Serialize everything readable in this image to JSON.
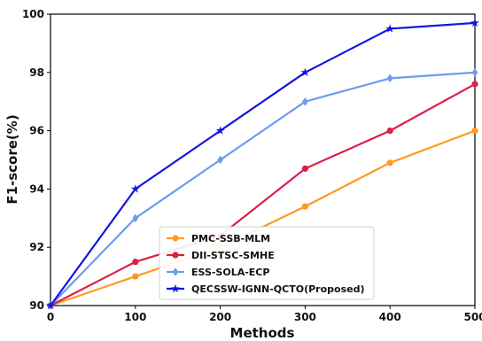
{
  "chart_data": {
    "type": "line",
    "xlabel": "Methods",
    "ylabel": "F1-score(%)",
    "x": [
      0,
      100,
      200,
      300,
      400,
      500
    ],
    "xlim": [
      0,
      500
    ],
    "ylim": [
      90,
      100
    ],
    "x_ticks": [
      "0",
      "100",
      "200",
      "300",
      "400",
      "500"
    ],
    "y_ticks": [
      "90",
      "92",
      "94",
      "96",
      "98",
      "100"
    ],
    "grid": false,
    "legend_position": "lower-center",
    "series": [
      {
        "name": "PMC-SSB-MLM",
        "color": "#ff9a1f",
        "marker": "circle",
        "values": [
          90.0,
          91.0,
          92.0,
          93.4,
          94.9,
          96.0
        ]
      },
      {
        "name": "DII-STSC-SMHE",
        "color": "#dc1f47",
        "marker": "circle",
        "values": [
          90.0,
          91.5,
          92.4,
          94.7,
          96.0,
          97.6
        ]
      },
      {
        "name": "ESS-SOLA-ECP",
        "color": "#6d9bef",
        "marker": "diamond",
        "values": [
          90.0,
          93.0,
          95.0,
          97.0,
          97.8,
          98.0
        ]
      },
      {
        "name": "QECSSW-IGNN-QCTO(Proposed)",
        "color": "#1414e0",
        "marker": "star",
        "values": [
          90.0,
          94.0,
          96.0,
          98.0,
          99.5,
          99.7
        ]
      }
    ]
  }
}
